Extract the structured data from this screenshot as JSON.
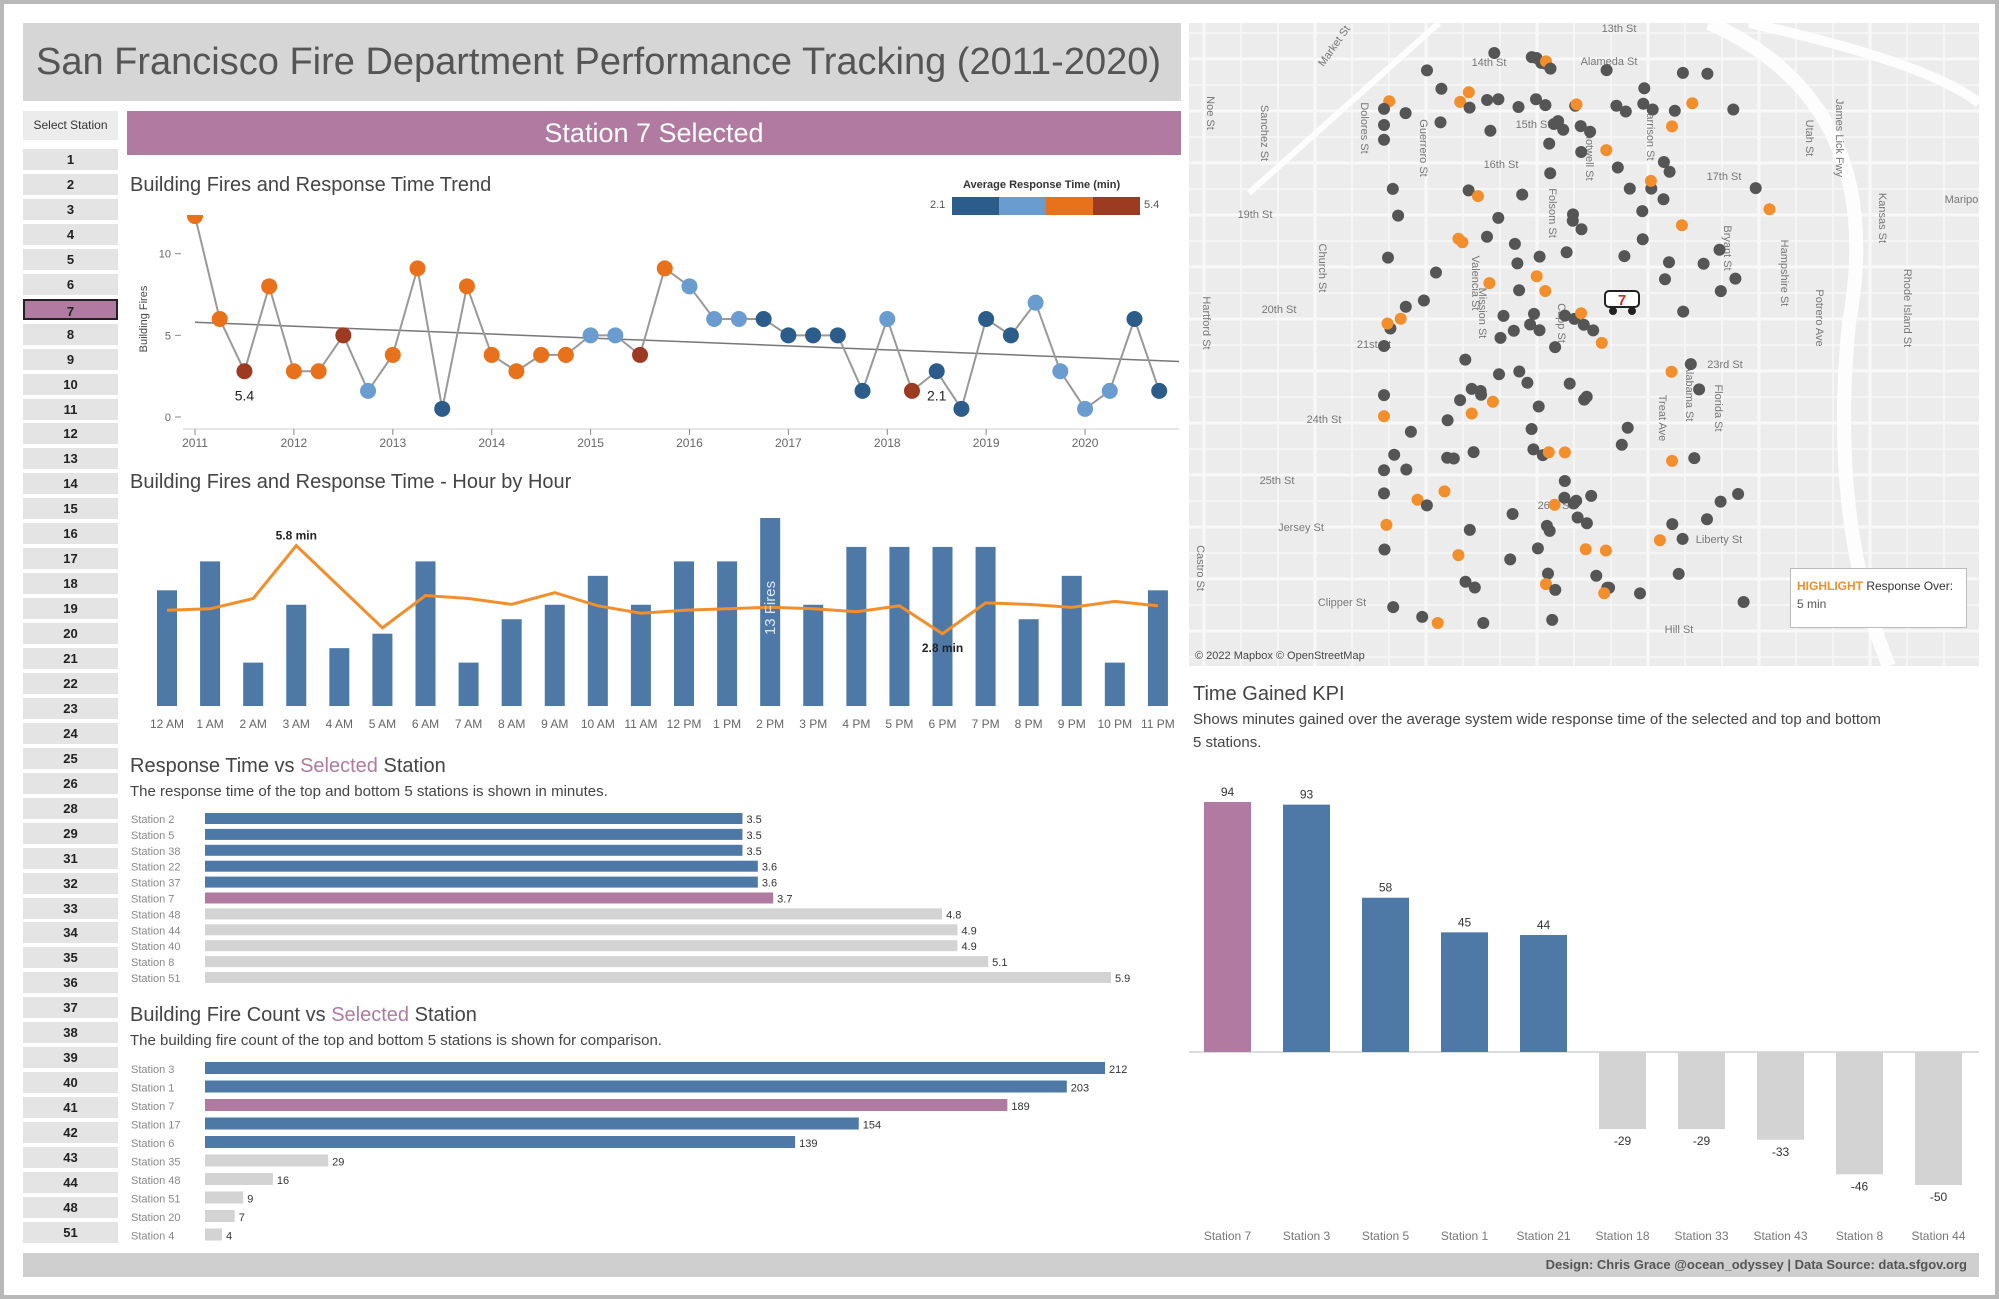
{
  "title": "San Francisco Fire Department Performance Tracking (2011-2020)",
  "station_selector": {
    "header": "Select Station",
    "items": [
      "1",
      "2",
      "3",
      "4",
      "5",
      "6",
      "7",
      "8",
      "9",
      "10",
      "11",
      "12",
      "13",
      "14",
      "15",
      "16",
      "17",
      "18",
      "19",
      "20",
      "21",
      "22",
      "23",
      "24",
      "25",
      "26",
      "28",
      "29",
      "31",
      "32",
      "33",
      "34",
      "35",
      "36",
      "37",
      "38",
      "39",
      "40",
      "41",
      "42",
      "43",
      "44",
      "48",
      "51"
    ],
    "selected": "7"
  },
  "banner": "Station 7 Selected",
  "colors": {
    "selected": "#b07aa1",
    "blue": "#4e79a7",
    "gray": "#d3d3d3",
    "orange": "#f28e2b",
    "dark_blue": "#2b5c8a",
    "light_blue": "#6a9ccf",
    "dark_orange": "#e8711c",
    "red": "#9c3b22"
  },
  "trend": {
    "title": "Building Fires and Response Time Trend",
    "legend_title": "Average Response Time (min)",
    "legend_min": "2.1",
    "legend_max": "5.4",
    "min_label": "2.1",
    "max_label": "5.4"
  },
  "hourly": {
    "title": "Building Fires and Response Time - Hour by Hour",
    "annot_max": "5.8 min",
    "annot_min": "2.8 min",
    "annot_bar": "13 Fires"
  },
  "response": {
    "title_pre": "Response Time vs ",
    "title_hl": "Selected",
    "title_post": " Station",
    "subtitle": "The response time of the top and bottom 5 stations is shown in minutes."
  },
  "firecount": {
    "title_pre": "Building Fire Count vs ",
    "title_hl": "Selected",
    "title_post": " Station",
    "subtitle": "The building fire count of the top and bottom 5 stations is shown for comparison."
  },
  "kpi": {
    "title": "Time Gained KPI",
    "subtitle_1": "Shows minutes gained over the average system wide response time of the selected and top and bottom",
    "subtitle_2": "5 stations."
  },
  "map": {
    "credit": "© 2022 Mapbox © OpenStreetMap",
    "legend_highlight": "HIGHLIGHT",
    "legend_rest": " Response Over:",
    "legend_value": "5 min",
    "station_marker": "7",
    "streets": [
      "13th St",
      "14th St",
      "15th St",
      "16th St",
      "17th St",
      "19th St",
      "20th St",
      "21st St",
      "23rd St",
      "24th St",
      "25th St",
      "26th St",
      "Liberty St",
      "Hill St",
      "Jersey St",
      "Clipper St",
      "Alameda St",
      "Mariposa St",
      "Market St",
      "Noe St",
      "Sanchez St",
      "Dolores St",
      "Guerrero St",
      "Church St",
      "Hartford St",
      "Castro St",
      "Valencia St",
      "Mission St",
      "Capp St",
      "Folsom St",
      "Harrison St",
      "Bryant St",
      "Shotwell St",
      "Treat Ave",
      "Alabama St",
      "Florida St",
      "Hampshire St",
      "Potrero Ave",
      "Utah St",
      "James Lick Fwy",
      "Kansas St",
      "Rhode Island St"
    ]
  },
  "footer": "Design: Chris Grace @ocean_odyssey  |  Data Source: data.sfgov.org",
  "chart_data": [
    {
      "type": "line",
      "name": "trend",
      "title": "Building Fires and Response Time Trend",
      "ylabel": "Building Fires",
      "ylim": [
        0,
        12
      ],
      "y_ticks": [
        0,
        5,
        10
      ],
      "x_ticks": [
        "2011",
        "2012",
        "2013",
        "2014",
        "2015",
        "2016",
        "2017",
        "2018",
        "2019",
        "2020"
      ],
      "xlim": [
        2011,
        2020.95
      ],
      "points": [
        {
          "x": 2011.0,
          "y": 12.3,
          "c": "dark_orange"
        },
        {
          "x": 2011.25,
          "y": 6.0,
          "c": "dark_orange"
        },
        {
          "x": 2011.5,
          "y": 2.8,
          "c": "red"
        },
        {
          "x": 2011.75,
          "y": 8.0,
          "c": "dark_orange"
        },
        {
          "x": 2012.0,
          "y": 2.8,
          "c": "dark_orange"
        },
        {
          "x": 2012.25,
          "y": 2.8,
          "c": "dark_orange"
        },
        {
          "x": 2012.5,
          "y": 5.0,
          "c": "red"
        },
        {
          "x": 2012.75,
          "y": 1.6,
          "c": "light_blue"
        },
        {
          "x": 2013.0,
          "y": 3.8,
          "c": "dark_orange"
        },
        {
          "x": 2013.25,
          "y": 9.1,
          "c": "dark_orange"
        },
        {
          "x": 2013.5,
          "y": 0.5,
          "c": "dark_blue"
        },
        {
          "x": 2013.75,
          "y": 8.0,
          "c": "dark_orange"
        },
        {
          "x": 2014.0,
          "y": 3.8,
          "c": "dark_orange"
        },
        {
          "x": 2014.25,
          "y": 2.8,
          "c": "dark_orange"
        },
        {
          "x": 2014.5,
          "y": 3.8,
          "c": "dark_orange"
        },
        {
          "x": 2014.75,
          "y": 3.8,
          "c": "dark_orange"
        },
        {
          "x": 2015.0,
          "y": 5.0,
          "c": "light_blue"
        },
        {
          "x": 2015.25,
          "y": 5.0,
          "c": "light_blue"
        },
        {
          "x": 2015.5,
          "y": 3.8,
          "c": "red"
        },
        {
          "x": 2015.75,
          "y": 9.1,
          "c": "dark_orange"
        },
        {
          "x": 2016.0,
          "y": 8.0,
          "c": "light_blue"
        },
        {
          "x": 2016.25,
          "y": 6.0,
          "c": "light_blue"
        },
        {
          "x": 2016.5,
          "y": 6.0,
          "c": "light_blue"
        },
        {
          "x": 2016.75,
          "y": 6.0,
          "c": "dark_blue"
        },
        {
          "x": 2017.0,
          "y": 5.0,
          "c": "dark_blue"
        },
        {
          "x": 2017.25,
          "y": 5.0,
          "c": "dark_blue"
        },
        {
          "x": 2017.5,
          "y": 5.0,
          "c": "dark_blue"
        },
        {
          "x": 2017.75,
          "y": 1.6,
          "c": "dark_blue"
        },
        {
          "x": 2018.0,
          "y": 6.0,
          "c": "light_blue"
        },
        {
          "x": 2018.25,
          "y": 1.6,
          "c": "red"
        },
        {
          "x": 2018.5,
          "y": 2.8,
          "c": "dark_blue"
        },
        {
          "x": 2018.75,
          "y": 0.5,
          "c": "dark_blue"
        },
        {
          "x": 2019.0,
          "y": 6.0,
          "c": "dark_blue"
        },
        {
          "x": 2019.25,
          "y": 5.0,
          "c": "dark_blue"
        },
        {
          "x": 2019.5,
          "y": 7.0,
          "c": "light_blue"
        },
        {
          "x": 2019.75,
          "y": 2.8,
          "c": "light_blue"
        },
        {
          "x": 2020.0,
          "y": 0.5,
          "c": "light_blue"
        },
        {
          "x": 2020.25,
          "y": 1.6,
          "c": "light_blue"
        },
        {
          "x": 2020.5,
          "y": 6.0,
          "c": "dark_blue"
        },
        {
          "x": 2020.75,
          "y": 1.6,
          "c": "dark_blue"
        }
      ],
      "trendline": [
        [
          2011.0,
          5.8
        ],
        [
          2020.95,
          3.4
        ]
      ]
    },
    {
      "type": "bar",
      "name": "hourly",
      "title": "Building Fires and Response Time - Hour by Hour",
      "categories": [
        "12 AM",
        "1 AM",
        "2 AM",
        "3 AM",
        "4 AM",
        "5 AM",
        "6 AM",
        "7 AM",
        "8 AM",
        "9 AM",
        "10 AM",
        "11 AM",
        "12 PM",
        "1 PM",
        "2 PM",
        "3 PM",
        "4 PM",
        "5 PM",
        "6 PM",
        "7 PM",
        "8 PM",
        "9 PM",
        "10 PM",
        "11 PM"
      ],
      "bar_values": [
        8,
        10,
        3,
        7,
        4,
        5,
        10,
        3,
        6,
        7,
        9,
        7,
        10,
        10,
        13,
        7,
        11,
        11,
        11,
        11,
        6,
        9,
        3,
        8
      ],
      "line_values": [
        3.6,
        3.65,
        4.0,
        5.8,
        4.4,
        3.0,
        4.1,
        4.0,
        3.8,
        4.2,
        3.75,
        3.5,
        3.6,
        3.65,
        3.7,
        3.65,
        3.55,
        3.75,
        2.8,
        3.85,
        3.8,
        3.7,
        3.9,
        3.75
      ],
      "ylim": [
        0,
        13
      ],
      "line_ylim": [
        0,
        6.4
      ]
    },
    {
      "type": "bar",
      "name": "response",
      "orientation": "horizontal",
      "categories": [
        "Station 2",
        "Station 5",
        "Station 38",
        "Station 22",
        "Station 37",
        "Station 7",
        "Station 48",
        "Station 44",
        "Station 40",
        "Station 8",
        "Station 51"
      ],
      "values": [
        3.5,
        3.5,
        3.5,
        3.6,
        3.6,
        3.7,
        4.8,
        4.9,
        4.9,
        5.1,
        5.9
      ],
      "groups": [
        "blue",
        "blue",
        "blue",
        "blue",
        "blue",
        "selected",
        "gray",
        "gray",
        "gray",
        "gray",
        "gray"
      ],
      "xlim": [
        0,
        5.9
      ]
    },
    {
      "type": "bar",
      "name": "firecount",
      "orientation": "horizontal",
      "categories": [
        "Station 3",
        "Station 1",
        "Station 7",
        "Station 17",
        "Station 6",
        "Station 35",
        "Station 48",
        "Station 51",
        "Station 20",
        "Station 4"
      ],
      "values": [
        212,
        203,
        189,
        154,
        139,
        29,
        16,
        9,
        7,
        4
      ],
      "groups": [
        "blue",
        "blue",
        "selected",
        "blue",
        "blue",
        "gray",
        "gray",
        "gray",
        "gray",
        "gray"
      ],
      "xlim": [
        0,
        212
      ]
    },
    {
      "type": "bar",
      "name": "kpi",
      "title": "Time Gained KPI",
      "categories": [
        "Station 7",
        "Station 3",
        "Station 5",
        "Station 1",
        "Station 21",
        "Station 18",
        "Station 33",
        "Station 43",
        "Station 8",
        "Station 44"
      ],
      "values": [
        94,
        93,
        58,
        45,
        44,
        -29,
        -29,
        -33,
        -46,
        -50
      ],
      "groups": [
        "selected",
        "blue",
        "blue",
        "blue",
        "blue",
        "gray",
        "gray",
        "gray",
        "gray",
        "gray"
      ],
      "ylim": [
        -50,
        94
      ]
    }
  ]
}
